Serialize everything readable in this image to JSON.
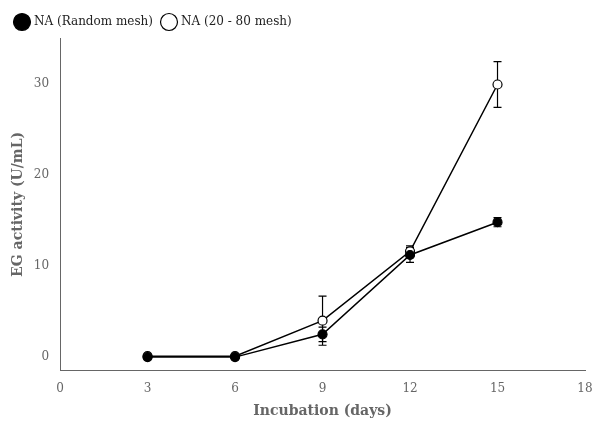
{
  "chart_data": {
    "type": "line",
    "x": [
      3,
      6,
      9,
      12,
      15
    ],
    "series": [
      {
        "name": "NA (Random mesh)",
        "values": [
          0.0,
          0.0,
          2.5,
          11.2,
          14.8
        ],
        "yerr": [
          0.1,
          0.15,
          0.8,
          0.8,
          0.5
        ],
        "color": "black",
        "marker": "filled_circle"
      },
      {
        "name": "NA (20 - 80 mesh)",
        "values": [
          0.1,
          0.1,
          4.0,
          11.6,
          29.9
        ],
        "yerr": [
          0.2,
          0.2,
          2.7,
          0.6,
          2.5
        ],
        "color": "black",
        "marker": "open_circle"
      }
    ],
    "xlabel": "Incubation (days)",
    "ylabel": "EG activity (U/mL)",
    "xlim": [
      0,
      18
    ],
    "ylim": [
      -1.5,
      35
    ],
    "xticks": [
      0,
      3,
      6,
      9,
      12,
      15,
      18
    ],
    "yticks": [
      0,
      10,
      20,
      30
    ],
    "grid": false,
    "legend": "upper left"
  }
}
